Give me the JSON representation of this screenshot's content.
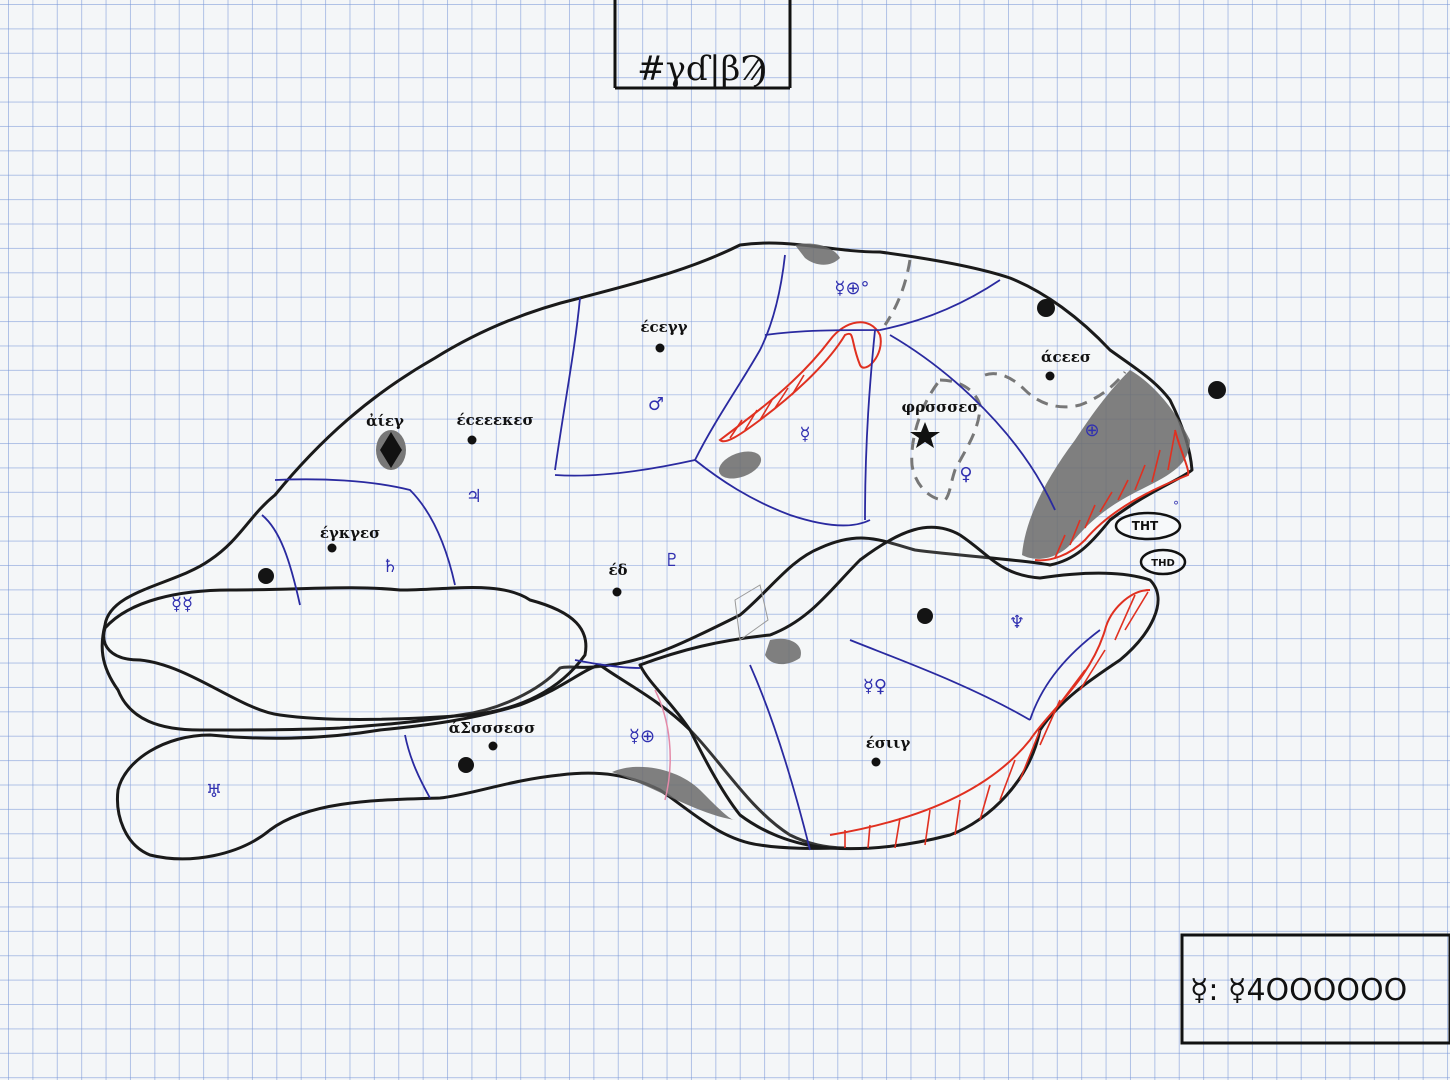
{
  "title": "#γɗ|βϠ",
  "legend": {
    "text": "☿: ☿4OOOOOO"
  },
  "colors": {
    "grid": "#7896d7",
    "outline": "#1a1a1a",
    "border_blue": "#2a2aa0",
    "hatch_red": "#e03020",
    "shade_gray": "#6a6a6a"
  },
  "regions": [
    {
      "id": "nw",
      "city": "ἀίεγ",
      "symbol": "♃"
    },
    {
      "id": "n",
      "city": "έcεεεκεσ",
      "symbol": ""
    },
    {
      "id": "w",
      "city": "έγκγεσ",
      "symbol": "♄"
    },
    {
      "id": "far-w",
      "city": "",
      "symbol": "☿☿"
    },
    {
      "id": "north-center",
      "city": "έcεγγ",
      "symbol": "♂"
    },
    {
      "id": "center",
      "city": "έδ",
      "symbol": "♇"
    },
    {
      "id": "ne-center",
      "city": "",
      "symbol": "☿"
    },
    {
      "id": "ne",
      "city": "φρσσσεσ",
      "symbol": "♀"
    },
    {
      "id": "far-ne",
      "city": "άcεεσ",
      "symbol": "⊕"
    },
    {
      "id": "top-ne",
      "city": "",
      "symbol": "☿⊕°"
    },
    {
      "id": "se",
      "city": "έσιιγ",
      "symbol": "☿♀"
    },
    {
      "id": "east",
      "city": "",
      "symbol": "♆"
    },
    {
      "id": "sw",
      "city": "άΣσσσεσσ",
      "symbol": "♅"
    },
    {
      "id": "south",
      "city": "",
      "symbol": "☿⊕"
    }
  ],
  "islands": [
    {
      "label": "THT",
      "symbol": "°"
    },
    {
      "label": "THD",
      "symbol": ""
    }
  ]
}
